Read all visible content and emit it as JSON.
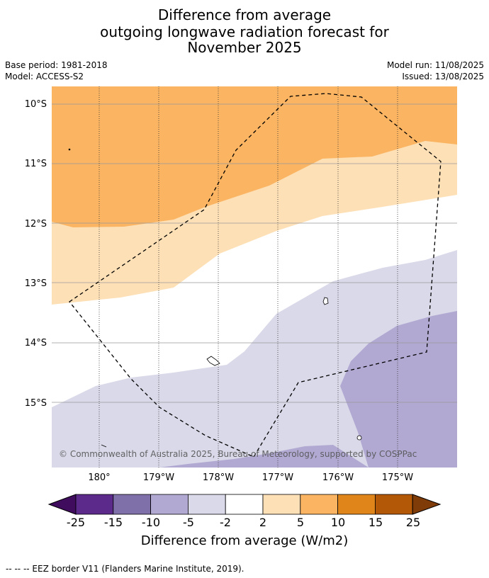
{
  "title": {
    "line1": "Difference from average",
    "line2": "outgoing longwave radiation forecast for",
    "line3": "November 2025"
  },
  "meta": {
    "base_period": "Base period: 1981-2018",
    "model": "Model: ACCESS-S2",
    "model_run": "Model run: 11/08/2025",
    "issued": "Issued: 13/08/2025"
  },
  "map": {
    "lat_labels": [
      "10°S",
      "11°S",
      "12°S",
      "13°S",
      "14°S",
      "15°S"
    ],
    "lon_labels": [
      "180°",
      "179°W",
      "178°W",
      "177°W",
      "176°W",
      "175°W"
    ],
    "copyright": "© Commonwealth of Australia 2025, Bureau of Meteorology, supported by COSPPac"
  },
  "colorbar": {
    "labels": [
      "-25",
      "-15",
      "-10",
      "-5",
      "-2",
      "2",
      "5",
      "10",
      "15",
      "25"
    ],
    "colors": [
      "#3f0c5e",
      "#5b2a8b",
      "#8070aa",
      "#b1a9d2",
      "#d9d9e9",
      "#ffffff",
      "#fde0b6",
      "#fbb562",
      "#e08519",
      "#b35806",
      "#7f3b08"
    ],
    "title": "Difference from average (W/m2)"
  },
  "footer": "--  --  -- EEZ border V11 (Flanders Marine Institute, 2019)."
}
